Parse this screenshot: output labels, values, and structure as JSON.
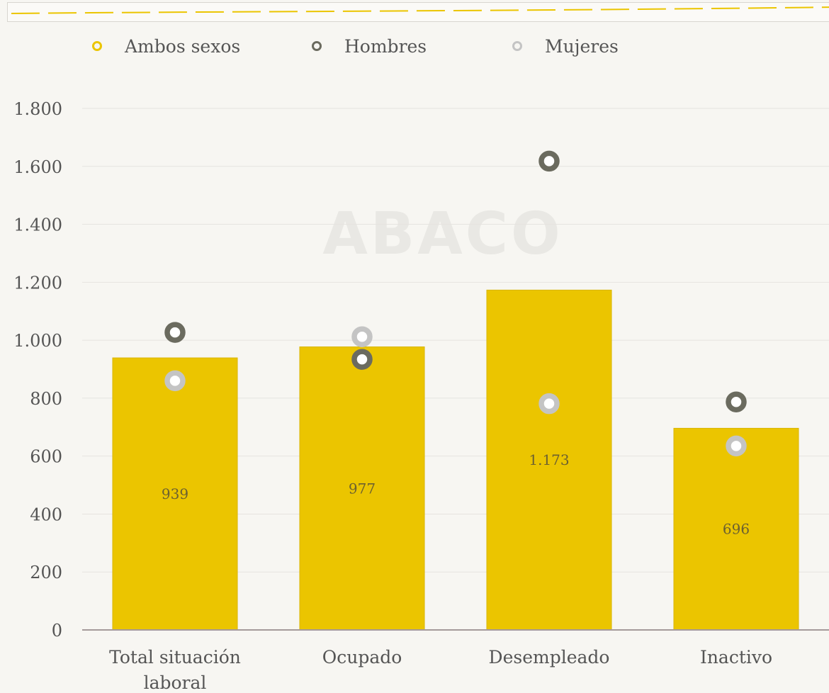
{
  "colors": {
    "ambos": "#ebc500",
    "hombres": "#6b6b5f",
    "mujeres": "#c4c4c4",
    "axis": "#a59a9a",
    "grid": "#e6e4e0",
    "text": "#555555",
    "watermark": "#e9e8e4"
  },
  "watermark": "ABACO",
  "legend": {
    "ambos": "Ambos sexos",
    "hombres": "Hombres",
    "mujeres": "Mujeres"
  },
  "chart_data": {
    "type": "bar",
    "categories": [
      "Total situación laboral",
      "Ocupado",
      "Desempleado",
      "Inactivo"
    ],
    "category_lines": [
      [
        "Total situación",
        "laboral"
      ],
      [
        "Ocupado"
      ],
      [
        "Desempleado"
      ],
      [
        "Inactivo"
      ]
    ],
    "series": [
      {
        "name": "Ambos sexos",
        "kind": "bar",
        "values": [
          939,
          977,
          1173,
          696
        ]
      },
      {
        "name": "Hombres",
        "kind": "marker",
        "values": [
          1027,
          934,
          1618,
          787
        ]
      },
      {
        "name": "Mujeres",
        "kind": "marker",
        "values": [
          860,
          1012,
          781,
          635
        ]
      }
    ],
    "data_labels": [
      "939",
      "977",
      "1.173",
      "696"
    ],
    "yticks": [
      0,
      200,
      400,
      600,
      800,
      1000,
      1200,
      1400,
      1600,
      1800
    ],
    "ytick_labels": [
      "0",
      "200",
      "400",
      "600",
      "800",
      "1.000",
      "1.200",
      "1.400",
      "1.600",
      "1.800"
    ],
    "ylim": [
      0,
      1800
    ],
    "grid": true,
    "legend_position": "top-left"
  }
}
